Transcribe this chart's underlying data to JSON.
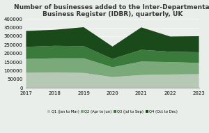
{
  "title": "Number of businesses added to the Inter-Departmental\nBusiness Register (IDBR), quarterly, UK",
  "years": [
    2017,
    2018,
    2019,
    2020,
    2021,
    2022,
    2023
  ],
  "Q1": [
    88000,
    90000,
    87000,
    63000,
    75000,
    78000,
    80000
  ],
  "Q2": [
    80000,
    82000,
    85000,
    57000,
    78000,
    72000,
    65000
  ],
  "Q3": [
    70000,
    72000,
    70000,
    48000,
    68000,
    60000,
    62000
  ],
  "Q4": [
    92000,
    93000,
    110000,
    72000,
    130000,
    88000,
    93000
  ],
  "colors": {
    "Q1": "#b5c9b5",
    "Q2": "#7aaa7a",
    "Q3": "#3a7a3a",
    "Q4": "#1a4a1a"
  },
  "legend_labels": [
    "Q1 (Jan to Mar)",
    "Q2 (Apr to Jun)",
    "Q3 (Jul to Sep)",
    "Q4 (Oct to Dec)"
  ],
  "ylim": [
    0,
    400000
  ],
  "yticks": [
    0,
    50000,
    100000,
    150000,
    200000,
    250000,
    300000,
    350000,
    400000
  ],
  "background_color": "#eaeeea",
  "title_fontsize": 6.5,
  "tick_fontsize": 5
}
